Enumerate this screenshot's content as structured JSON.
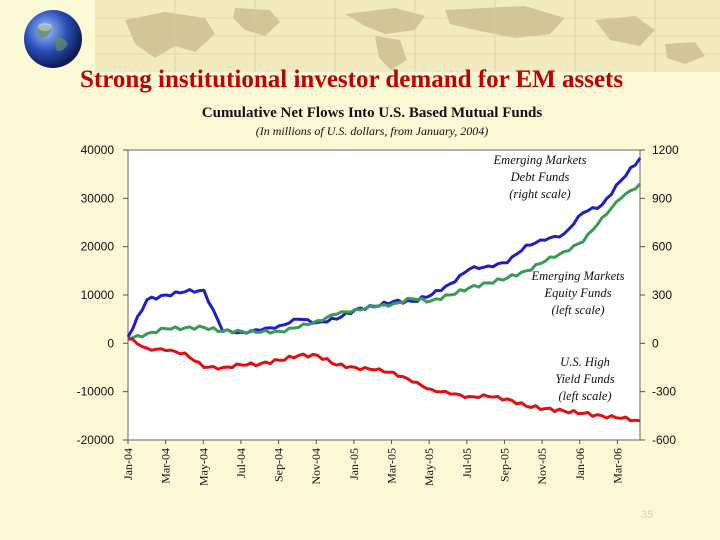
{
  "slide": {
    "title": "Strong institutional investor demand for EM assets",
    "page_number": "35"
  },
  "chart_data": {
    "type": "line",
    "title": "Cumulative Net Flows Into U.S. Based Mutual Funds",
    "subtitle": "(In millions of U.S. dollars, from January, 2004)",
    "x": [
      "2004-01",
      "2004-02",
      "2004-03",
      "2004-04",
      "2004-05",
      "2004-06",
      "2004-07",
      "2004-08",
      "2004-09",
      "2004-10",
      "2004-11",
      "2004-12",
      "2005-01",
      "2005-02",
      "2005-03",
      "2005-04",
      "2005-05",
      "2005-06",
      "2005-07",
      "2005-08",
      "2005-09",
      "2005-10",
      "2005-11",
      "2005-12",
      "2006-01",
      "2006-02",
      "2006-03",
      "2006-04"
    ],
    "x_tick_labels": [
      "Jan-04",
      "Mar-04",
      "May-04",
      "Jul-04",
      "Sep-04",
      "Nov-04",
      "Jan-05",
      "Mar-05",
      "May-05",
      "Jul-05",
      "Sep-05",
      "Nov-05",
      "Jan-06",
      "Mar-06"
    ],
    "left_axis": {
      "range": [
        -20000,
        40000
      ],
      "ticks": [
        "40000",
        "30000",
        "20000",
        "10000",
        "0",
        "-10000",
        "-20000"
      ]
    },
    "right_axis": {
      "range": [
        -600,
        1200
      ],
      "ticks": [
        "1200",
        "900",
        "600",
        "300",
        "0",
        "-300",
        "-600"
      ]
    },
    "series": [
      {
        "name": "Emerging Markets Debt Funds (right scale)",
        "label_lines": [
          "Emerging Markets",
          "Debt Funds",
          "(right scale)"
        ],
        "axis": "right",
        "color": "#1f1fc8",
        "values": [
          40,
          270,
          300,
          320,
          330,
          75,
          70,
          80,
          110,
          150,
          130,
          150,
          210,
          230,
          260,
          260,
          300,
          370,
          460,
          480,
          500,
          610,
          640,
          680,
          810,
          860,
          1010,
          1150
        ]
      },
      {
        "name": "Emerging Markets Equity Funds (left scale)",
        "label_lines": [
          "Emerging Markets",
          "Equity Funds",
          "(left scale)"
        ],
        "axis": "left",
        "color": "#3a9a5a",
        "values": [
          800,
          2000,
          3000,
          3200,
          3300,
          2500,
          2500,
          2300,
          2500,
          3300,
          4700,
          6000,
          7000,
          7500,
          8200,
          9200,
          8800,
          10000,
          11500,
          12500,
          13500,
          15000,
          17000,
          19000,
          21000,
          26000,
          30000,
          33000
        ]
      },
      {
        "name": "U.S. High Yield Funds (left scale)",
        "label_lines": [
          "U.S. High",
          "Yield Funds",
          "(left scale)"
        ],
        "axis": "left",
        "color": "#e01010",
        "values": [
          1000,
          -1000,
          -1500,
          -2000,
          -5000,
          -5000,
          -4500,
          -4200,
          -3500,
          -2500,
          -2500,
          -4500,
          -5000,
          -5500,
          -6000,
          -8000,
          -9500,
          -10500,
          -11000,
          -11000,
          -11500,
          -13000,
          -13500,
          -14000,
          -14500,
          -15000,
          -15500,
          -16000
        ]
      }
    ],
    "grid": false,
    "legend": "inline labels"
  }
}
